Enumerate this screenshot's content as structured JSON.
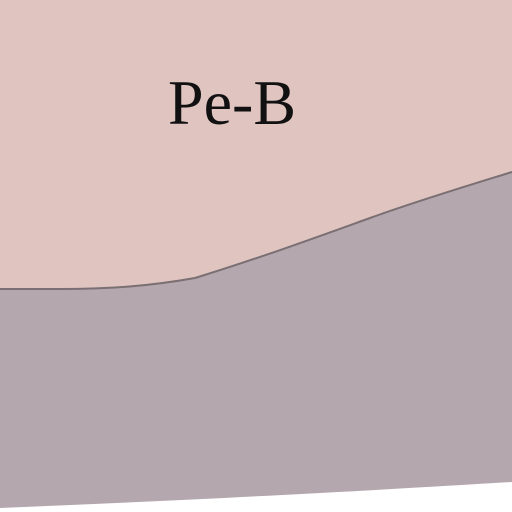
{
  "map": {
    "regions": [
      {
        "label": "Pe-B",
        "color": "#e0c4c0"
      },
      {
        "label": "",
        "color": "#b5a7ae"
      }
    ],
    "boundary_color": "#7a6f73",
    "background_color": "#ffffff"
  }
}
